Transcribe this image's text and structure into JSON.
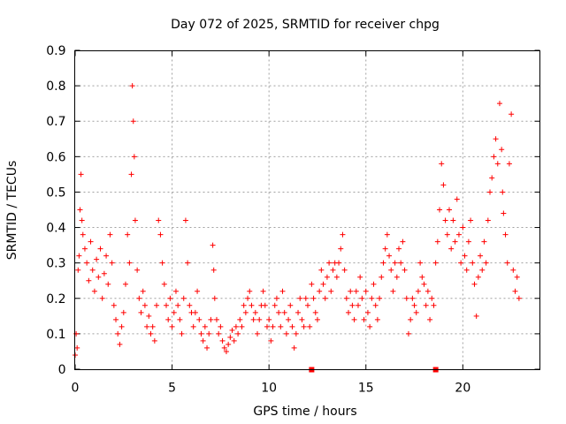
{
  "chart_data": {
    "type": "scatter",
    "title": "Day 072 of 2025, SRMTID for receiver chpg",
    "xlabel": "GPS time / hours",
    "ylabel": "SRMTID / TECUs",
    "xlim": [
      0,
      24
    ],
    "ylim": [
      0,
      0.9
    ],
    "xticks": [
      0,
      5,
      10,
      15,
      20
    ],
    "xtick_labels": [
      "0",
      "5",
      "10",
      "15",
      "20"
    ],
    "yticks": [
      0,
      0.1,
      0.2,
      0.3,
      0.4,
      0.5,
      0.6,
      0.7,
      0.8,
      0.9
    ],
    "ytick_labels": [
      "0",
      "0.1",
      "0.2",
      "0.3",
      "0.4",
      "0.5",
      "0.6",
      "0.7",
      "0.8",
      "0.9"
    ],
    "grid": true,
    "marker": "plus",
    "series": [
      {
        "name": "SRMTID",
        "color": "#ff0000",
        "points": [
          [
            0.0,
            0.04
          ],
          [
            0.05,
            0.1
          ],
          [
            0.1,
            0.06
          ],
          [
            0.15,
            0.28
          ],
          [
            0.2,
            0.32
          ],
          [
            0.25,
            0.45
          ],
          [
            0.3,
            0.55
          ],
          [
            0.35,
            0.42
          ],
          [
            0.4,
            0.38
          ],
          [
            0.5,
            0.34
          ],
          [
            0.6,
            0.3
          ],
          [
            0.7,
            0.25
          ],
          [
            0.8,
            0.36
          ],
          [
            0.9,
            0.28
          ],
          [
            1.0,
            0.22
          ],
          [
            1.1,
            0.31
          ],
          [
            1.2,
            0.26
          ],
          [
            1.3,
            0.34
          ],
          [
            1.4,
            0.2
          ],
          [
            1.5,
            0.27
          ],
          [
            1.6,
            0.32
          ],
          [
            1.7,
            0.24
          ],
          [
            1.8,
            0.38
          ],
          [
            1.9,
            0.3
          ],
          [
            2.0,
            0.18
          ],
          [
            2.1,
            0.14
          ],
          [
            2.2,
            0.1
          ],
          [
            2.3,
            0.07
          ],
          [
            2.4,
            0.12
          ],
          [
            2.5,
            0.16
          ],
          [
            2.6,
            0.24
          ],
          [
            2.7,
            0.38
          ],
          [
            2.8,
            0.3
          ],
          [
            2.9,
            0.55
          ],
          [
            2.95,
            0.8
          ],
          [
            3.0,
            0.7
          ],
          [
            3.05,
            0.6
          ],
          [
            3.1,
            0.42
          ],
          [
            3.2,
            0.28
          ],
          [
            3.3,
            0.2
          ],
          [
            3.4,
            0.16
          ],
          [
            3.5,
            0.22
          ],
          [
            3.6,
            0.18
          ],
          [
            3.7,
            0.12
          ],
          [
            3.8,
            0.15
          ],
          [
            3.9,
            0.1
          ],
          [
            4.0,
            0.12
          ],
          [
            4.1,
            0.08
          ],
          [
            4.2,
            0.18
          ],
          [
            4.3,
            0.42
          ],
          [
            4.4,
            0.38
          ],
          [
            4.5,
            0.3
          ],
          [
            4.6,
            0.24
          ],
          [
            4.7,
            0.18
          ],
          [
            4.8,
            0.14
          ],
          [
            4.9,
            0.2
          ],
          [
            5.0,
            0.12
          ],
          [
            5.1,
            0.16
          ],
          [
            5.2,
            0.22
          ],
          [
            5.3,
            0.18
          ],
          [
            5.4,
            0.14
          ],
          [
            5.5,
            0.1
          ],
          [
            5.6,
            0.2
          ],
          [
            5.7,
            0.42
          ],
          [
            5.8,
            0.3
          ],
          [
            5.9,
            0.18
          ],
          [
            6.0,
            0.16
          ],
          [
            6.1,
            0.12
          ],
          [
            6.2,
            0.16
          ],
          [
            6.3,
            0.22
          ],
          [
            6.4,
            0.14
          ],
          [
            6.5,
            0.1
          ],
          [
            6.6,
            0.08
          ],
          [
            6.7,
            0.12
          ],
          [
            6.8,
            0.06
          ],
          [
            6.9,
            0.1
          ],
          [
            7.0,
            0.14
          ],
          [
            7.1,
            0.35
          ],
          [
            7.15,
            0.28
          ],
          [
            7.2,
            0.2
          ],
          [
            7.3,
            0.14
          ],
          [
            7.4,
            0.1
          ],
          [
            7.5,
            0.12
          ],
          [
            7.6,
            0.08
          ],
          [
            7.7,
            0.06
          ],
          [
            7.8,
            0.05
          ],
          [
            7.9,
            0.07
          ],
          [
            8.0,
            0.09
          ],
          [
            8.1,
            0.11
          ],
          [
            8.2,
            0.08
          ],
          [
            8.3,
            0.12
          ],
          [
            8.4,
            0.1
          ],
          [
            8.5,
            0.14
          ],
          [
            8.6,
            0.12
          ],
          [
            8.7,
            0.18
          ],
          [
            8.8,
            0.16
          ],
          [
            8.9,
            0.2
          ],
          [
            9.0,
            0.22
          ],
          [
            9.1,
            0.18
          ],
          [
            9.2,
            0.14
          ],
          [
            9.3,
            0.16
          ],
          [
            9.4,
            0.1
          ],
          [
            9.5,
            0.14
          ],
          [
            9.6,
            0.18
          ],
          [
            9.7,
            0.22
          ],
          [
            9.8,
            0.18
          ],
          [
            9.9,
            0.12
          ],
          [
            10.0,
            0.14
          ],
          [
            10.1,
            0.08
          ],
          [
            10.2,
            0.12
          ],
          [
            10.3,
            0.18
          ],
          [
            10.4,
            0.2
          ],
          [
            10.5,
            0.16
          ],
          [
            10.6,
            0.12
          ],
          [
            10.7,
            0.22
          ],
          [
            10.8,
            0.16
          ],
          [
            10.9,
            0.1
          ],
          [
            11.0,
            0.14
          ],
          [
            11.1,
            0.18
          ],
          [
            11.2,
            0.12
          ],
          [
            11.3,
            0.06
          ],
          [
            11.4,
            0.1
          ],
          [
            11.5,
            0.16
          ],
          [
            11.6,
            0.2
          ],
          [
            11.7,
            0.14
          ],
          [
            11.8,
            0.12
          ],
          [
            11.9,
            0.2
          ],
          [
            12.0,
            0.18
          ],
          [
            12.1,
            0.12
          ],
          [
            12.2,
            0.24
          ],
          [
            12.3,
            0.2
          ],
          [
            12.4,
            0.16
          ],
          [
            12.5,
            0.14
          ],
          [
            12.6,
            0.22
          ],
          [
            12.7,
            0.28
          ],
          [
            12.8,
            0.24
          ],
          [
            12.9,
            0.2
          ],
          [
            13.0,
            0.26
          ],
          [
            13.1,
            0.3
          ],
          [
            13.2,
            0.22
          ],
          [
            13.3,
            0.28
          ],
          [
            13.4,
            0.3
          ],
          [
            13.5,
            0.26
          ],
          [
            13.6,
            0.3
          ],
          [
            13.7,
            0.34
          ],
          [
            13.8,
            0.38
          ],
          [
            13.9,
            0.28
          ],
          [
            14.0,
            0.2
          ],
          [
            14.1,
            0.16
          ],
          [
            14.2,
            0.22
          ],
          [
            14.3,
            0.18
          ],
          [
            14.4,
            0.14
          ],
          [
            14.5,
            0.22
          ],
          [
            14.6,
            0.18
          ],
          [
            14.7,
            0.26
          ],
          [
            14.8,
            0.2
          ],
          [
            14.9,
            0.14
          ],
          [
            15.0,
            0.22
          ],
          [
            15.1,
            0.16
          ],
          [
            15.2,
            0.12
          ],
          [
            15.3,
            0.2
          ],
          [
            15.4,
            0.24
          ],
          [
            15.5,
            0.18
          ],
          [
            15.6,
            0.14
          ],
          [
            15.7,
            0.2
          ],
          [
            15.8,
            0.26
          ],
          [
            15.9,
            0.3
          ],
          [
            16.0,
            0.34
          ],
          [
            16.1,
            0.38
          ],
          [
            16.2,
            0.32
          ],
          [
            16.3,
            0.28
          ],
          [
            16.4,
            0.22
          ],
          [
            16.5,
            0.3
          ],
          [
            16.6,
            0.26
          ],
          [
            16.7,
            0.34
          ],
          [
            16.8,
            0.3
          ],
          [
            16.9,
            0.36
          ],
          [
            17.0,
            0.28
          ],
          [
            17.1,
            0.2
          ],
          [
            17.2,
            0.1
          ],
          [
            17.3,
            0.14
          ],
          [
            17.4,
            0.2
          ],
          [
            17.5,
            0.18
          ],
          [
            17.6,
            0.16
          ],
          [
            17.7,
            0.22
          ],
          [
            17.8,
            0.3
          ],
          [
            17.9,
            0.26
          ],
          [
            18.0,
            0.24
          ],
          [
            18.1,
            0.18
          ],
          [
            18.2,
            0.22
          ],
          [
            18.3,
            0.14
          ],
          [
            18.4,
            0.2
          ],
          [
            18.5,
            0.18
          ],
          [
            18.6,
            0.3
          ],
          [
            18.7,
            0.36
          ],
          [
            18.8,
            0.45
          ],
          [
            18.9,
            0.58
          ],
          [
            19.0,
            0.52
          ],
          [
            19.1,
            0.42
          ],
          [
            19.2,
            0.38
          ],
          [
            19.3,
            0.45
          ],
          [
            19.4,
            0.34
          ],
          [
            19.5,
            0.42
          ],
          [
            19.6,
            0.36
          ],
          [
            19.7,
            0.48
          ],
          [
            19.8,
            0.38
          ],
          [
            19.9,
            0.3
          ],
          [
            20.0,
            0.4
          ],
          [
            20.1,
            0.32
          ],
          [
            20.2,
            0.28
          ],
          [
            20.3,
            0.36
          ],
          [
            20.4,
            0.42
          ],
          [
            20.5,
            0.3
          ],
          [
            20.6,
            0.24
          ],
          [
            20.7,
            0.15
          ],
          [
            20.8,
            0.26
          ],
          [
            20.9,
            0.32
          ],
          [
            21.0,
            0.28
          ],
          [
            21.1,
            0.36
          ],
          [
            21.2,
            0.3
          ],
          [
            21.3,
            0.42
          ],
          [
            21.4,
            0.5
          ],
          [
            21.5,
            0.54
          ],
          [
            21.6,
            0.6
          ],
          [
            21.7,
            0.65
          ],
          [
            21.8,
            0.58
          ],
          [
            21.9,
            0.75
          ],
          [
            22.0,
            0.62
          ],
          [
            22.05,
            0.5
          ],
          [
            22.1,
            0.44
          ],
          [
            22.2,
            0.38
          ],
          [
            22.3,
            0.3
          ],
          [
            22.4,
            0.58
          ],
          [
            22.5,
            0.72
          ],
          [
            22.6,
            0.28
          ],
          [
            22.7,
            0.22
          ],
          [
            22.8,
            0.26
          ],
          [
            22.9,
            0.2
          ]
        ]
      }
    ],
    "markers_on_axis": [
      12.2,
      18.6
    ]
  }
}
